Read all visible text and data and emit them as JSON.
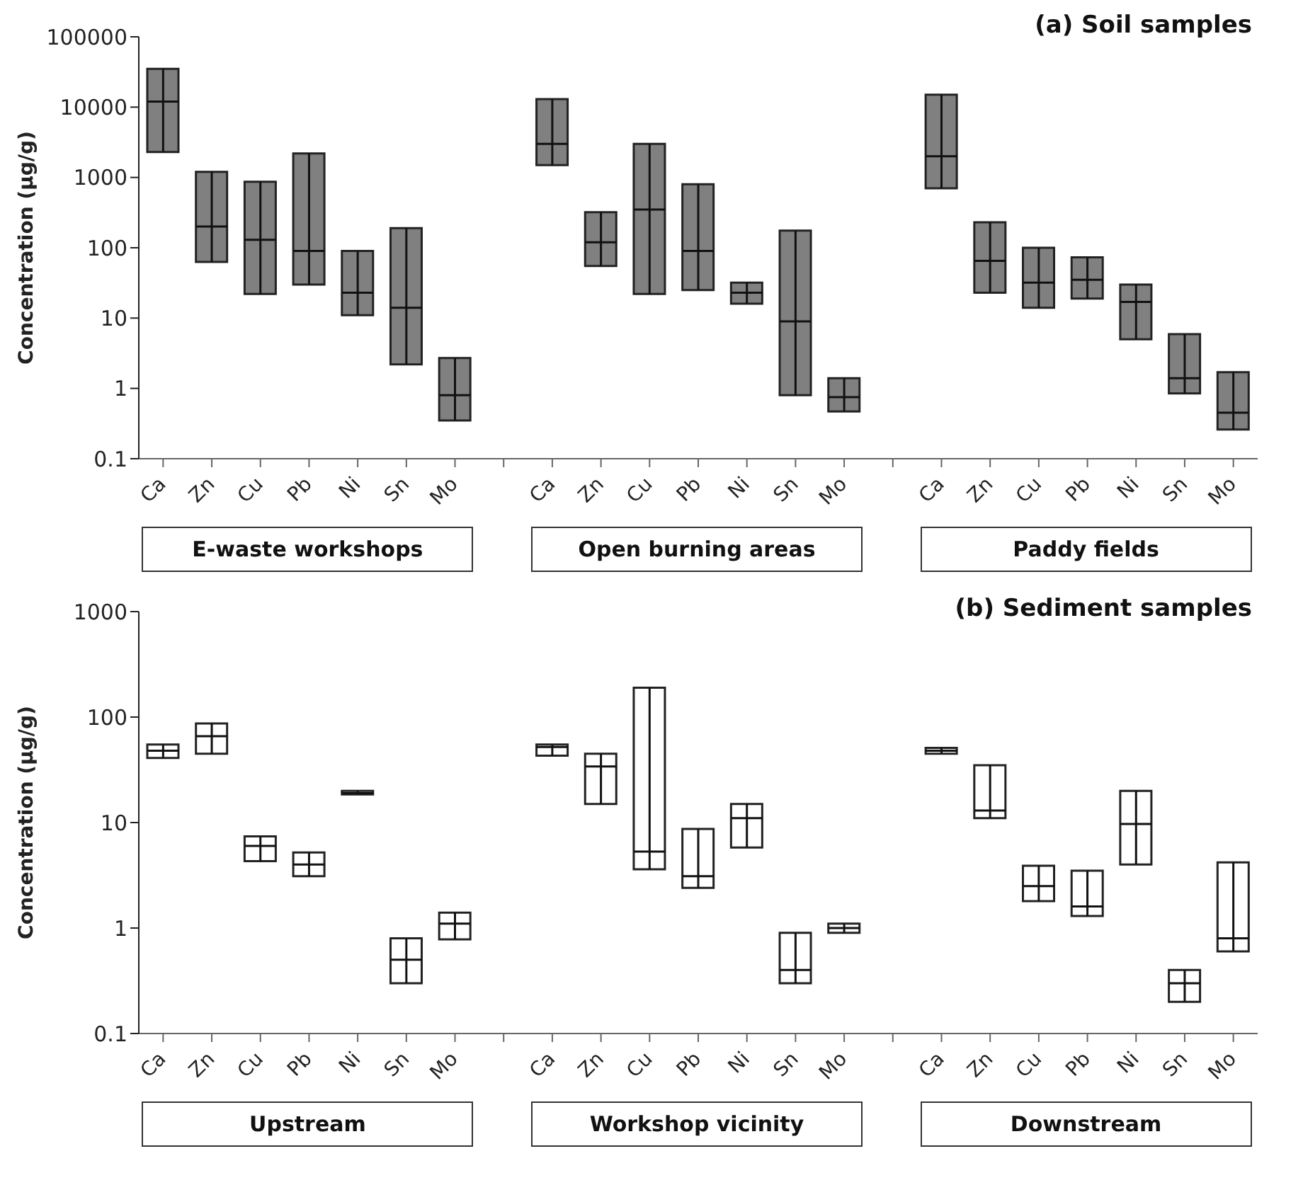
{
  "chart_data": [
    {
      "type": "box",
      "title": "(a) Soil samples",
      "ylabel": "Concentration (µg/g)",
      "color": "#808080",
      "log": "y",
      "ylim": [
        0.1,
        100000
      ],
      "yticks": [
        0.1,
        1,
        10,
        100,
        1000,
        10000,
        100000
      ],
      "categories": [
        "Ca",
        "Zn",
        "Cu",
        "Pb",
        "Ni",
        "Sn",
        "Mo",
        null,
        "Ca",
        "Zn",
        "Cu",
        "Pb",
        "Ni",
        "Sn",
        "Mo",
        null,
        "Ca",
        "Zn",
        "Cu",
        "Pb",
        "Ni",
        "Sn",
        "Mo"
      ],
      "boxes": [
        {
          "low": 2300,
          "q1": 2300,
          "median": 12000,
          "q3": 35000,
          "high": 35000
        },
        {
          "low": 63,
          "q1": 63,
          "median": 200,
          "q3": 1200,
          "high": 1200
        },
        {
          "low": 22,
          "q1": 22,
          "median": 130,
          "q3": 870,
          "high": 870
        },
        {
          "low": 30,
          "q1": 30,
          "median": 90,
          "q3": 2200,
          "high": 2200
        },
        {
          "low": 11,
          "q1": 11,
          "median": 23,
          "q3": 90,
          "high": 90
        },
        {
          "low": 2.2,
          "q1": 2.2,
          "median": 14,
          "q3": 190,
          "high": 190
        },
        {
          "low": 0.35,
          "q1": 0.35,
          "median": 0.8,
          "q3": 2.7,
          "high": 2.7
        },
        null,
        {
          "low": 1500,
          "q1": 1500,
          "median": 3000,
          "q3": 13000,
          "high": 13000
        },
        {
          "low": 55,
          "q1": 55,
          "median": 120,
          "q3": 320,
          "high": 320
        },
        {
          "low": 22,
          "q1": 22,
          "median": 350,
          "q3": 3000,
          "high": 3000
        },
        {
          "low": 25,
          "q1": 25,
          "median": 90,
          "q3": 800,
          "high": 800
        },
        {
          "low": 16,
          "q1": 16,
          "median": 23,
          "q3": 32,
          "high": 32
        },
        {
          "low": 0.8,
          "q1": 0.8,
          "median": 9,
          "q3": 175,
          "high": 175
        },
        {
          "low": 0.47,
          "q1": 0.47,
          "median": 0.75,
          "q3": 1.4,
          "high": 1.4
        },
        null,
        {
          "low": 700,
          "q1": 700,
          "median": 2000,
          "q3": 15000,
          "high": 15000
        },
        {
          "low": 23,
          "q1": 23,
          "median": 65,
          "q3": 230,
          "high": 230
        },
        {
          "low": 14,
          "q1": 14,
          "median": 32,
          "q3": 100,
          "high": 100
        },
        {
          "low": 19,
          "q1": 19,
          "median": 35,
          "q3": 73,
          "high": 73
        },
        {
          "low": 5,
          "q1": 5,
          "median": 17,
          "q3": 30,
          "high": 30
        },
        {
          "low": 0.85,
          "q1": 0.85,
          "median": 1.4,
          "q3": 5.9,
          "high": 5.9
        },
        {
          "low": 0.26,
          "q1": 0.26,
          "median": 0.45,
          "q3": 1.7,
          "high": 1.7
        }
      ],
      "annotations": [
        "E-waste workshops",
        "Open burning areas",
        "Paddy fields"
      ]
    },
    {
      "type": "box",
      "title": "(b) Sediment samples",
      "ylabel": "Concentration (µg/g)",
      "color": "#ffffff",
      "log": "y",
      "ylim": [
        0.1,
        1000
      ],
      "yticks": [
        0.1,
        1,
        10,
        100,
        1000
      ],
      "categories": [
        "Ca",
        "Zn",
        "Cu",
        "Pb",
        "Ni",
        "Sn",
        "Mo",
        null,
        "Ca",
        "Zn",
        "Cu",
        "Pb",
        "Ni",
        "Sn",
        "Mo",
        null,
        "Ca",
        "Zn",
        "Cu",
        "Pb",
        "Ni",
        "Sn",
        "Mo"
      ],
      "boxes": [
        {
          "low": 41,
          "q1": 41,
          "median": 48,
          "q3": 55,
          "high": 55
        },
        {
          "low": 45,
          "q1": 45,
          "median": 66,
          "q3": 87,
          "high": 87
        },
        {
          "low": 4.3,
          "q1": 4.3,
          "median": 6,
          "q3": 7.4,
          "high": 7.4
        },
        {
          "low": 3.1,
          "q1": 3.1,
          "median": 4,
          "q3": 5.2,
          "high": 5.2
        },
        {
          "low": 18.5,
          "q1": 18.5,
          "median": 19,
          "q3": 20,
          "high": 20
        },
        {
          "low": 0.3,
          "q1": 0.3,
          "median": 0.5,
          "q3": 0.8,
          "high": 0.8
        },
        {
          "low": 0.78,
          "q1": 0.78,
          "median": 1.1,
          "q3": 1.4,
          "high": 1.4
        },
        null,
        {
          "low": 43,
          "q1": 43,
          "median": 52,
          "q3": 55,
          "high": 55
        },
        {
          "low": 15,
          "q1": 15,
          "median": 34,
          "q3": 45,
          "high": 45
        },
        {
          "low": 3.6,
          "q1": 3.6,
          "median": 5.3,
          "q3": 190,
          "high": 190
        },
        {
          "low": 2.4,
          "q1": 2.4,
          "median": 3.1,
          "q3": 8.7,
          "high": 8.7
        },
        {
          "low": 5.8,
          "q1": 5.8,
          "median": 11,
          "q3": 15,
          "high": 15
        },
        {
          "low": 0.3,
          "q1": 0.3,
          "median": 0.4,
          "q3": 0.9,
          "high": 0.9
        },
        {
          "low": 0.9,
          "q1": 0.9,
          "median": 1,
          "q3": 1.1,
          "high": 1.1
        },
        null,
        {
          "low": 45,
          "q1": 45,
          "median": 48,
          "q3": 51,
          "high": 51
        },
        {
          "low": 11,
          "q1": 11,
          "median": 13,
          "q3": 35,
          "high": 35
        },
        {
          "low": 1.8,
          "q1": 1.8,
          "median": 2.5,
          "q3": 3.9,
          "high": 3.9
        },
        {
          "low": 1.3,
          "q1": 1.3,
          "median": 1.6,
          "q3": 3.5,
          "high": 3.5
        },
        {
          "low": 4,
          "q1": 4,
          "median": 9.7,
          "q3": 20,
          "high": 20
        },
        {
          "low": 0.2,
          "q1": 0.2,
          "median": 0.3,
          "q3": 0.4,
          "high": 0.4
        },
        {
          "low": 0.6,
          "q1": 0.6,
          "median": 0.8,
          "q3": 4.2,
          "high": 4.2
        }
      ],
      "annotations": [
        "Upstream",
        "Workshop vicinity",
        "Downstream"
      ]
    }
  ]
}
